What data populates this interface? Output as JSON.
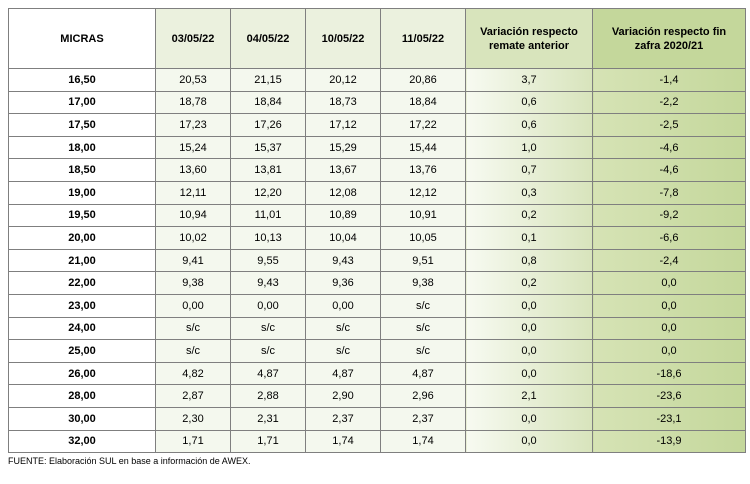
{
  "table": {
    "header": [
      "MICRAS",
      "03/05/22",
      "04/05/22",
      "10/05/22",
      "11/05/22",
      "Variación respecto remate anterior",
      "Variación respecto fin zafra 2020/21"
    ],
    "rows": [
      [
        "16,50",
        "20,53",
        "21,15",
        "20,12",
        "20,86",
        "3,7",
        "-1,4"
      ],
      [
        "17,00",
        "18,78",
        "18,84",
        "18,73",
        "18,84",
        "0,6",
        "-2,2"
      ],
      [
        "17,50",
        "17,23",
        "17,26",
        "17,12",
        "17,22",
        "0,6",
        "-2,5"
      ],
      [
        "18,00",
        "15,24",
        "15,37",
        "15,29",
        "15,44",
        "1,0",
        "-4,6"
      ],
      [
        "18,50",
        "13,60",
        "13,81",
        "13,67",
        "13,76",
        "0,7",
        "-4,6"
      ],
      [
        "19,00",
        "12,11",
        "12,20",
        "12,08",
        "12,12",
        "0,3",
        "-7,8"
      ],
      [
        "19,50",
        "10,94",
        "11,01",
        "10,89",
        "10,91",
        "0,2",
        "-9,2"
      ],
      [
        "20,00",
        "10,02",
        "10,13",
        "10,04",
        "10,05",
        "0,1",
        "-6,6"
      ],
      [
        "21,00",
        "9,41",
        "9,55",
        "9,43",
        "9,51",
        "0,8",
        "-2,4"
      ],
      [
        "22,00",
        "9,38",
        "9,43",
        "9,36",
        "9,38",
        "0,2",
        "0,0"
      ],
      [
        "23,00",
        "0,00",
        "0,00",
        "0,00",
        "s/c",
        "0,0",
        "0,0"
      ],
      [
        "24,00",
        "s/c",
        "s/c",
        "s/c",
        "s/c",
        "0,0",
        "0,0"
      ],
      [
        "25,00",
        "s/c",
        "s/c",
        "s/c",
        "s/c",
        "0,0",
        "0,0"
      ],
      [
        "26,00",
        "4,82",
        "4,87",
        "4,87",
        "4,87",
        "0,0",
        "-18,6"
      ],
      [
        "28,00",
        "2,87",
        "2,88",
        "2,90",
        "2,96",
        "2,1",
        "-23,6"
      ],
      [
        "30,00",
        "2,30",
        "2,31",
        "2,37",
        "2,37",
        "0,0",
        "-23,1"
      ],
      [
        "32,00",
        "1,71",
        "1,71",
        "1,74",
        "1,74",
        "0,0",
        "-13,9"
      ]
    ]
  },
  "footer": "FUENTE: Elaboración SUL en base a información de AWEX."
}
